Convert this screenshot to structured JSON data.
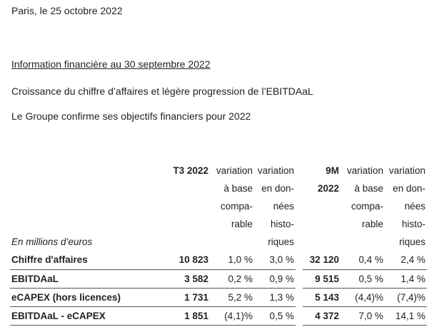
{
  "header": {
    "dateline": "Paris, le 25 octobre 2022"
  },
  "intro": {
    "title": "Information financière au 30 septembre 2022",
    "headline_1": "Croissance du chiffre d’affaires et légère progression de l’EBITDAaL",
    "headline_2": "Le Groupe confirme ses objectifs financiers pour 2022"
  },
  "table": {
    "unit_label": "En millions d’euros",
    "columns": {
      "t3": {
        "period": "T3 2022",
        "var_comp": [
          "variation",
          "à base",
          "compa-",
          "rable"
        ],
        "var_hist": [
          "variation",
          "en don-",
          "nées",
          "histo-",
          "riques"
        ]
      },
      "m9": {
        "period_line1": "9M",
        "period_line2": "2022",
        "var_comp": [
          "variation",
          "à base",
          "compa-",
          "rable"
        ],
        "var_hist": [
          "variation",
          "en don-",
          "nées",
          "histo-",
          "riques"
        ]
      }
    },
    "rows": [
      {
        "label": "Chiffre d'affaires",
        "t3": "10 823",
        "t3_comp": "1,0 %",
        "t3_hist": "3,0 %",
        "m9": "32 120",
        "m9_comp": "0,4 %",
        "m9_hist": "2,4 %"
      },
      {
        "label": "EBITDAaL",
        "t3": "3 582",
        "t3_comp": "0,2 %",
        "t3_hist": "0,9 %",
        "m9": "9 515",
        "m9_comp": "0,5 %",
        "m9_hist": "1,4 %"
      },
      {
        "label": "eCAPEX (hors licences)",
        "t3": "1 731",
        "t3_comp": "5,2 %",
        "t3_hist": "1,3 %",
        "m9": "5 143",
        "m9_comp": "(4,4)%",
        "m9_hist": "(7,4)%"
      },
      {
        "label": "EBITDAaL - eCAPEX",
        "t3": "1 851",
        "t3_comp": "(4,1)%",
        "t3_hist": "0,5 %",
        "m9": "4 372",
        "m9_comp": "7,0 %",
        "m9_hist": "14,1 %"
      }
    ]
  }
}
